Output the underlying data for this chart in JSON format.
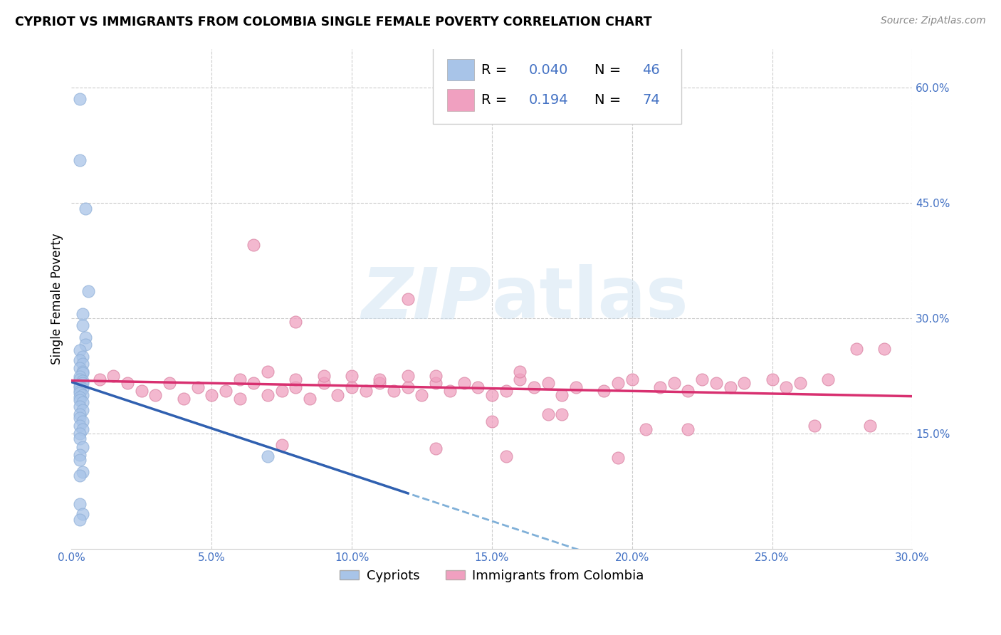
{
  "title": "CYPRIOT VS IMMIGRANTS FROM COLOMBIA SINGLE FEMALE POVERTY CORRELATION CHART",
  "source": "Source: ZipAtlas.com",
  "ylabel": "Single Female Poverty",
  "watermark": "ZIPatlas",
  "xlim": [
    0.0,
    0.3
  ],
  "ylim": [
    0.0,
    0.65
  ],
  "xtick_vals": [
    0.0,
    0.05,
    0.1,
    0.15,
    0.2,
    0.25,
    0.3
  ],
  "xtick_labels": [
    "0.0%",
    "5.0%",
    "10.0%",
    "15.0%",
    "20.0%",
    "25.0%",
    "30.0%"
  ],
  "ytick_vals": [
    0.15,
    0.3,
    0.45,
    0.6
  ],
  "ytick_labels": [
    "15.0%",
    "30.0%",
    "45.0%",
    "60.0%"
  ],
  "cypriot_color": "#a8c4e8",
  "colombia_color": "#f0a0c0",
  "trend_blue_solid": "#3060b0",
  "trend_blue_dash": "#80b0d8",
  "trend_pink_solid": "#d83070",
  "background_color": "#ffffff",
  "grid_color": "#cccccc",
  "cypriot_x": [
    0.003,
    0.003,
    0.005,
    0.006,
    0.004,
    0.004,
    0.005,
    0.005,
    0.003,
    0.004,
    0.003,
    0.004,
    0.003,
    0.004,
    0.004,
    0.003,
    0.003,
    0.004,
    0.004,
    0.003,
    0.003,
    0.004,
    0.003,
    0.003,
    0.004,
    0.003,
    0.003,
    0.004,
    0.003,
    0.004,
    0.003,
    0.003,
    0.004,
    0.003,
    0.004,
    0.003,
    0.003,
    0.004,
    0.003,
    0.003,
    0.004,
    0.003,
    0.07,
    0.003,
    0.004,
    0.003
  ],
  "cypriot_y": [
    0.585,
    0.505,
    0.442,
    0.335,
    0.305,
    0.29,
    0.275,
    0.265,
    0.258,
    0.25,
    0.245,
    0.24,
    0.235,
    0.23,
    0.228,
    0.224,
    0.22,
    0.218,
    0.215,
    0.212,
    0.21,
    0.208,
    0.205,
    0.202,
    0.2,
    0.197,
    0.193,
    0.19,
    0.185,
    0.18,
    0.175,
    0.17,
    0.165,
    0.16,
    0.155,
    0.15,
    0.143,
    0.132,
    0.122,
    0.115,
    0.1,
    0.095,
    0.12,
    0.058,
    0.045,
    0.038
  ],
  "colombia_x": [
    0.01,
    0.015,
    0.02,
    0.025,
    0.03,
    0.035,
    0.04,
    0.045,
    0.05,
    0.055,
    0.06,
    0.06,
    0.065,
    0.07,
    0.07,
    0.075,
    0.08,
    0.08,
    0.085,
    0.09,
    0.09,
    0.095,
    0.1,
    0.1,
    0.105,
    0.11,
    0.11,
    0.115,
    0.12,
    0.12,
    0.125,
    0.13,
    0.13,
    0.135,
    0.14,
    0.145,
    0.15,
    0.155,
    0.16,
    0.16,
    0.165,
    0.17,
    0.175,
    0.18,
    0.19,
    0.195,
    0.2,
    0.21,
    0.215,
    0.22,
    0.225,
    0.23,
    0.235,
    0.24,
    0.25,
    0.255,
    0.26,
    0.27,
    0.28,
    0.29,
    0.065,
    0.08,
    0.12,
    0.15,
    0.17,
    0.175,
    0.205,
    0.22,
    0.265,
    0.285,
    0.075,
    0.13,
    0.155,
    0.195
  ],
  "colombia_y": [
    0.22,
    0.225,
    0.215,
    0.205,
    0.2,
    0.215,
    0.195,
    0.21,
    0.2,
    0.205,
    0.195,
    0.22,
    0.215,
    0.2,
    0.23,
    0.205,
    0.21,
    0.22,
    0.195,
    0.215,
    0.225,
    0.2,
    0.21,
    0.225,
    0.205,
    0.215,
    0.22,
    0.205,
    0.21,
    0.225,
    0.2,
    0.215,
    0.225,
    0.205,
    0.215,
    0.21,
    0.2,
    0.205,
    0.22,
    0.23,
    0.21,
    0.215,
    0.2,
    0.21,
    0.205,
    0.215,
    0.22,
    0.21,
    0.215,
    0.205,
    0.22,
    0.215,
    0.21,
    0.215,
    0.22,
    0.21,
    0.215,
    0.22,
    0.26,
    0.26,
    0.395,
    0.295,
    0.325,
    0.165,
    0.175,
    0.175,
    0.155,
    0.155,
    0.16,
    0.16,
    0.135,
    0.13,
    0.12,
    0.118
  ]
}
